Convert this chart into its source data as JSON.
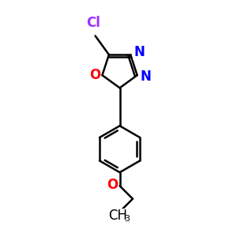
{
  "bg_color": "#ffffff",
  "bond_color": "#000000",
  "bond_width": 1.8,
  "cl_color": "#9b30ff",
  "o_color": "#ff0000",
  "n_color": "#0000ff",
  "font_size_atom": 12,
  "font_size_sub": 8,
  "figsize": [
    3.0,
    3.0
  ],
  "dpi": 100,
  "xlim": [
    -0.5,
    1.5
  ],
  "ylim": [
    -2.2,
    1.6
  ]
}
